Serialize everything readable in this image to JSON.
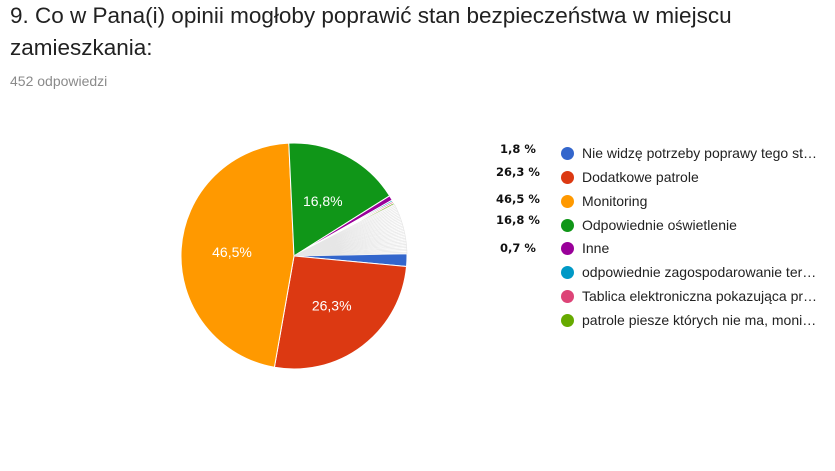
{
  "header": {
    "title": "9. Co w Pana(i) opinii mogłoby poprawić stan bezpieczeństwa w miejscu zamieszkania:",
    "responses": "452 odpowiedzi"
  },
  "colors": {
    "blue": "#3366cc",
    "red": "#dc3912",
    "orange": "#ff9900",
    "green": "#109618",
    "purple": "#990099",
    "teal": "#0099c6",
    "pink": "#dd4477",
    "lime": "#66aa00"
  },
  "chart_data": {
    "type": "pie",
    "title": "9. Co w Pana(i) opinii mogłoby poprawić stan bezpieczeństwa w miejscu zamieszkania:",
    "legend_position": "right",
    "slices": [
      {
        "label": "Nie widzę potrzeby poprawy tego st…",
        "value": 1.8,
        "display": "1,8 %",
        "color": "#3366cc"
      },
      {
        "label": "Dodatkowe patrole",
        "value": 26.3,
        "display": "26,3 %",
        "color": "#dc3912",
        "inner_label": "26,3%"
      },
      {
        "label": "Monitoring",
        "value": 46.5,
        "display": "46,5 %",
        "color": "#ff9900",
        "inner_label": "46,5%"
      },
      {
        "label": "Odpowiednie oświetlenie",
        "value": 16.8,
        "display": "16,8 %",
        "color": "#109618",
        "inner_label": "16,8%"
      },
      {
        "label": "Inne",
        "value": 0.7,
        "display": "0,7 %",
        "color": "#990099"
      },
      {
        "label": "odpowiednie zagospodarowanie ter…",
        "value": 0.22,
        "display": "",
        "color": "#0099c6"
      },
      {
        "label": "Tablica elektroniczna pokazująca pr…",
        "value": 0.22,
        "display": "",
        "color": "#dd4477"
      },
      {
        "label": "patrole piesze których nie ma, moni…",
        "value": 0.22,
        "display": "",
        "color": "#66aa00"
      }
    ],
    "small_slices_unlisted": {
      "count": 33,
      "value_each": 0.22,
      "color": "#ffffff"
    }
  }
}
